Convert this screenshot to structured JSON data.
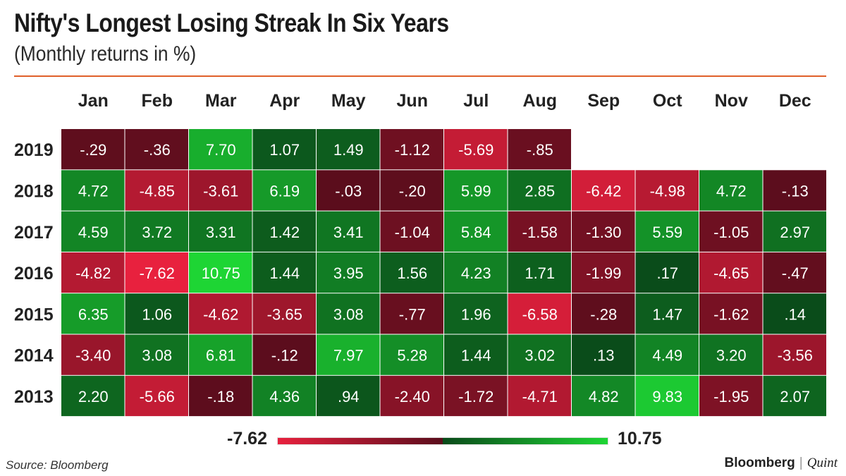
{
  "header": {
    "title": "Nifty's Longest Losing Streak In Six Years",
    "subtitle": "(Monthly returns in %)"
  },
  "footer": {
    "source": "Source: Bloomberg",
    "brand_primary": "Bloomberg",
    "brand_separator": "|",
    "brand_secondary": "Quint"
  },
  "colors": {
    "negative_max": "#e8213e",
    "negative_low": "#5a0d1c",
    "positive_low": "#0a4a1a",
    "positive_max": "#1ed534",
    "accent_rule": "#e0602a"
  },
  "chart_data": {
    "type": "heatmap",
    "title": "Nifty's Longest Losing Streak In Six Years",
    "subtitle": "(Monthly returns in %)",
    "columns": [
      "Jan",
      "Feb",
      "Mar",
      "Apr",
      "May",
      "Jun",
      "Jul",
      "Aug",
      "Sep",
      "Oct",
      "Nov",
      "Dec"
    ],
    "rows": [
      {
        "year": "2019",
        "values": [
          "-.29",
          "-.36",
          "7.70",
          "1.07",
          "1.49",
          "-1.12",
          "-5.69",
          "-.85",
          null,
          null,
          null,
          null
        ]
      },
      {
        "year": "2018",
        "values": [
          "4.72",
          "-4.85",
          "-3.61",
          "6.19",
          "-.03",
          "-.20",
          "5.99",
          "2.85",
          "-6.42",
          "-4.98",
          "4.72",
          "-.13"
        ]
      },
      {
        "year": "2017",
        "values": [
          "4.59",
          "3.72",
          "3.31",
          "1.42",
          "3.41",
          "-1.04",
          "5.84",
          "-1.58",
          "-1.30",
          "5.59",
          "-1.05",
          "2.97"
        ]
      },
      {
        "year": "2016",
        "values": [
          "-4.82",
          "-7.62",
          "10.75",
          "1.44",
          "3.95",
          "1.56",
          "4.23",
          "1.71",
          "-1.99",
          ".17",
          "-4.65",
          "-.47"
        ]
      },
      {
        "year": "2015",
        "values": [
          "6.35",
          "1.06",
          "-4.62",
          "-3.65",
          "3.08",
          "-.77",
          "1.96",
          "-6.58",
          "-.28",
          "1.47",
          "-1.62",
          ".14"
        ]
      },
      {
        "year": "2014",
        "values": [
          "-3.40",
          "3.08",
          "6.81",
          "-.12",
          "7.97",
          "5.28",
          "1.44",
          "3.02",
          ".13",
          "4.49",
          "3.20",
          "-3.56"
        ]
      },
      {
        "year": "2013",
        "values": [
          "2.20",
          "-5.66",
          "-.18",
          "4.36",
          ".94",
          "-2.40",
          "-1.72",
          "-4.71",
          "4.82",
          "9.83",
          "-1.95",
          "2.07"
        ]
      }
    ],
    "scale": {
      "min": "-7.62",
      "max": "10.75"
    },
    "legend_placement": "bottom-center"
  }
}
